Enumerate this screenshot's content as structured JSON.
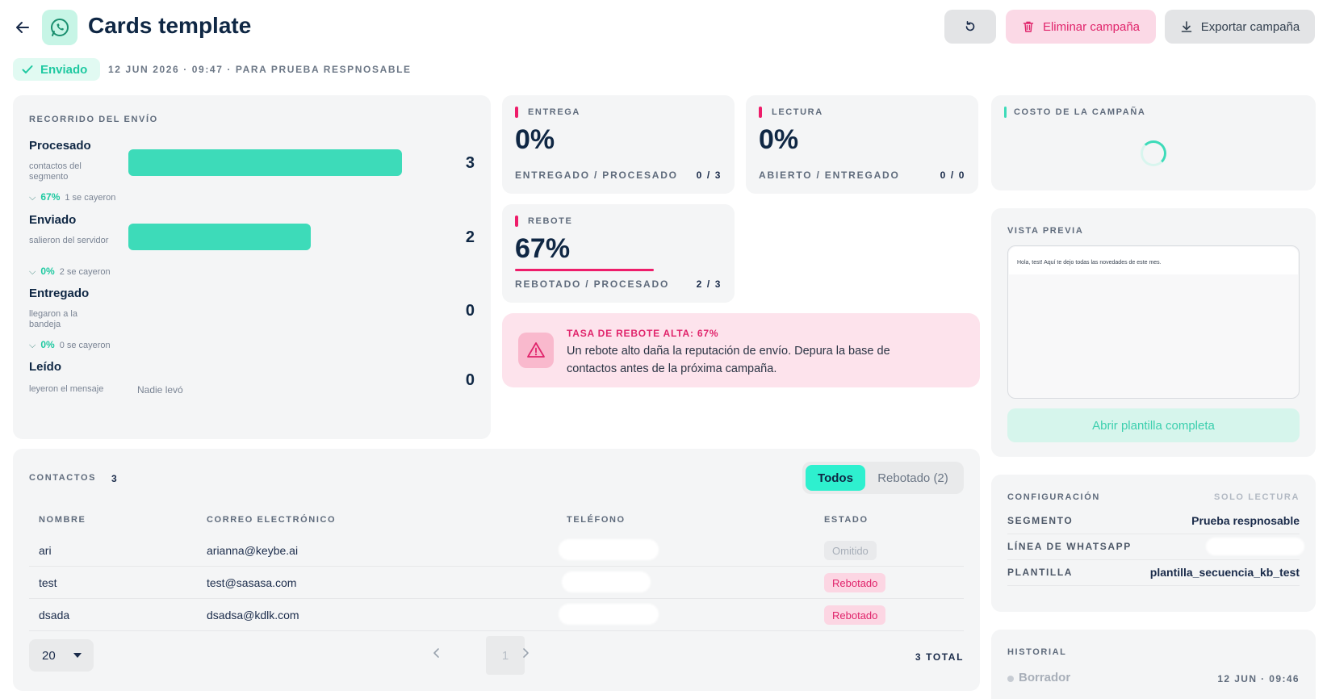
{
  "header": {
    "title": "Cards template",
    "delete_label": "Eliminar campaña",
    "export_label": "Exportar campaña",
    "status_label": "Enviado",
    "meta": "12 JUN 2026 · 09:47 · PARA PRUEBA RESPNOSABLE"
  },
  "journey": {
    "title": "RECORRIDO DEL ENVÍO",
    "stages": [
      {
        "name": "Procesado",
        "sub": "contactos del segmento",
        "value": "3",
        "fill": 1.0
      },
      {
        "name": "Enviado",
        "sub": "salieron del servidor",
        "value": "2",
        "fill": 0.667
      },
      {
        "name": "Entregado",
        "sub": "llegaron a la bandeja",
        "value": "0",
        "fill": 0
      },
      {
        "name": "Leído",
        "sub": "leyeron el mensaje",
        "value": "0",
        "fill": 0
      }
    ],
    "drops": [
      {
        "pct": "67%",
        "text": "1 se cayeron"
      },
      {
        "pct": "0%",
        "text": "2 se cayeron"
      },
      {
        "pct": "0%",
        "text": "0 se cayeron"
      }
    ],
    "nobody_read": "Nadie levó"
  },
  "metrics": {
    "entrega": {
      "label": "ENTREGA",
      "value": "0%",
      "sub": "ENTREGADO / PROCESADO",
      "ratio": "0 / 3"
    },
    "lectura": {
      "label": "LECTURA",
      "value": "0%",
      "sub": "ABIERTO / ENTREGADO",
      "ratio": "0 / 0"
    },
    "rebote": {
      "label": "REBOTE",
      "value": "67%",
      "sub": "REBOTADO / PROCESADO",
      "ratio": "2 / 3"
    }
  },
  "alert": {
    "title": "TASA DE REBOTE ALTA: 67%",
    "body": "Un rebote alto daña la reputación de envío. Depura la base de contactos antes de la próxima campaña."
  },
  "contacts": {
    "title": "CONTACTOS",
    "count": "3",
    "filter_all": "Todos",
    "filter_bounced": "Rebotado (2)",
    "columns": [
      "NOMBRE",
      "CORREO ELECTRÓNICO",
      "TELÉFONO",
      "ESTADO"
    ],
    "rows": [
      {
        "name": "ari",
        "email": "arianna@keybe.ai",
        "status": "Omitido"
      },
      {
        "name": "test",
        "email": "test@sasasa.com",
        "status": "Rebotado"
      },
      {
        "name": "dsada",
        "email": "dsadsa@kdlk.com",
        "status": "Rebotado"
      }
    ],
    "page_size": "20",
    "page": "1",
    "total": "3 TOTAL"
  },
  "cost": {
    "label": "COSTO DE LA CAMPAÑA"
  },
  "preview": {
    "label": "VISTA PREVIA",
    "message": "Hola, test! Aquí te dejo todas las novedades de este mes.",
    "open_label": "Abrir plantilla completa"
  },
  "config": {
    "title": "CONFIGURACIÓN",
    "readonly": "SOLO LECTURA",
    "segment_key": "SEGMENTO",
    "segment_val": "Prueba respnosable",
    "line_key": "LÍNEA DE WHATSAPP",
    "template_key": "PLANTILLA",
    "template_val": "plantilla_secuencia_kb_test"
  },
  "history": {
    "title": "HISTORIAL",
    "item": "Borrador",
    "date": "12 JUN · 09:46"
  },
  "colors": {
    "accent": "#3ddbb9",
    "danger": "#e0246b",
    "title": "#0f2744"
  }
}
